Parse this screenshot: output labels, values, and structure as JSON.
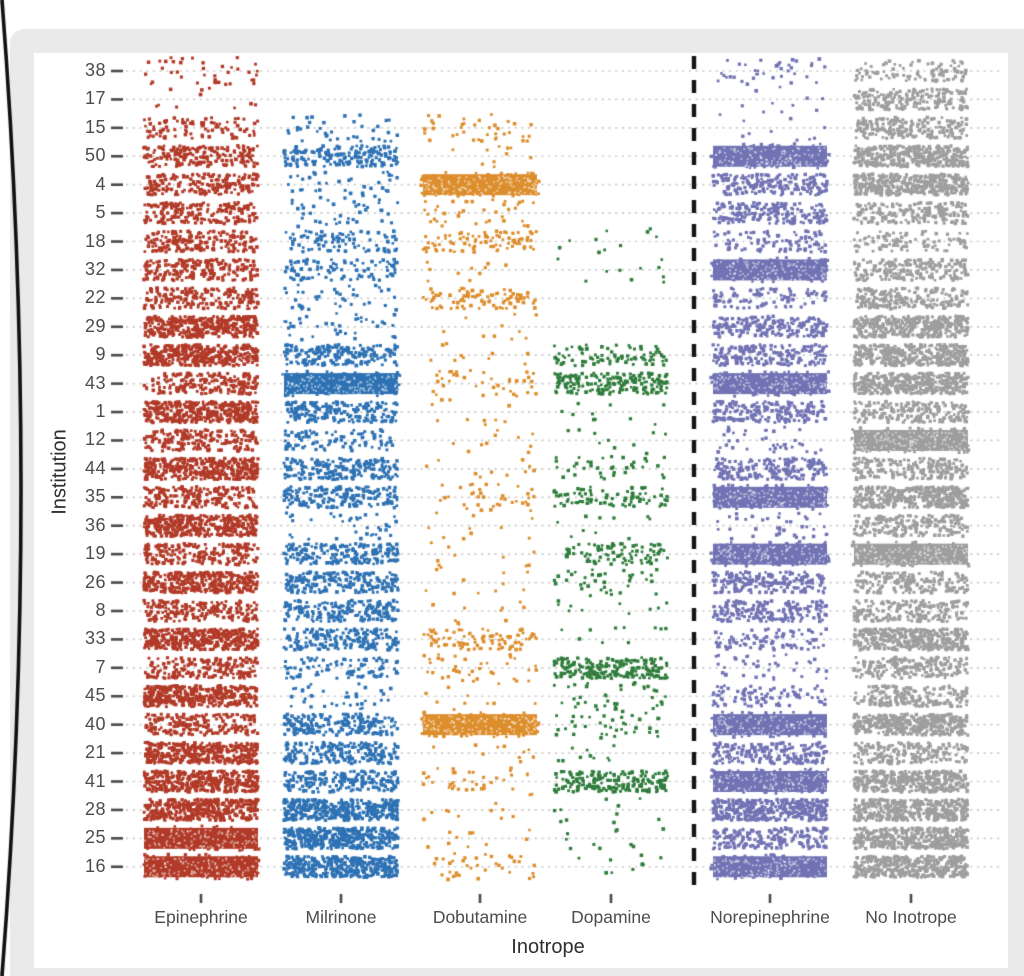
{
  "frame": {
    "left_edge_color": "#111111",
    "panel_background": "#eaeaea",
    "figure_background": "#ffffff",
    "grid_dot_color": "#cdcdcd",
    "tick_color": "#4a4a4a",
    "axis_text_color": "#4d4d4d"
  },
  "chart_data": {
    "type": "scatter",
    "variant": "jittered-strip-plot",
    "title": "",
    "xlabel": "Inotrope",
    "ylabel": "Institution",
    "legend": "none",
    "grid": "dotted horizontal line per institution row",
    "x_categories": [
      "Epinephrine",
      "Milrinone",
      "Dobutamine",
      "Dopamine",
      "Norepinephrine",
      "No Inotrope"
    ],
    "series_colors": {
      "Epinephrine": "#B23A28",
      "Milrinone": "#2E72B4",
      "Dobutamine": "#DD8E2D",
      "Dopamine": "#2F7D3C",
      "Norepinephrine": "#7173B4",
      "No Inotrope": "#9E9E9E"
    },
    "separator": {
      "position": "between Dopamine and Norepinephrine",
      "style": "dashed vertical line",
      "color": "#141414"
    },
    "y_categories": [
      "38",
      "17",
      "15",
      "50",
      "4",
      "5",
      "18",
      "32",
      "22",
      "29",
      "9",
      "43",
      "1",
      "12",
      "44",
      "35",
      "36",
      "19",
      "26",
      "8",
      "33",
      "7",
      "45",
      "40",
      "21",
      "41",
      "28",
      "25",
      "16"
    ],
    "density_scale": "0=none, 1≈10 pts, 2≈38 pts, 3≈90 pts, 4≈190 pts, 5≈380 pts (near solid), 6=solid band",
    "densities": [
      [
        2,
        0,
        0,
        0,
        2,
        3
      ],
      [
        1,
        0,
        0,
        0,
        1,
        4
      ],
      [
        3,
        2,
        2,
        0,
        1,
        4
      ],
      [
        4,
        4,
        1,
        0,
        6,
        5
      ],
      [
        4,
        2,
        6,
        0,
        4,
        5
      ],
      [
        4,
        2,
        2,
        0,
        4,
        4
      ],
      [
        4,
        3,
        3,
        1,
        3,
        3
      ],
      [
        4,
        3,
        1,
        1,
        6,
        4
      ],
      [
        4,
        2,
        3,
        0,
        3,
        4
      ],
      [
        5,
        2,
        1,
        0,
        4,
        5
      ],
      [
        5,
        4,
        1,
        3,
        4,
        5
      ],
      [
        4,
        6,
        2,
        4,
        6,
        5
      ],
      [
        5,
        4,
        1,
        1,
        4,
        4
      ],
      [
        4,
        3,
        1,
        1,
        2,
        6
      ],
      [
        5,
        4,
        1,
        2,
        4,
        4
      ],
      [
        4,
        4,
        2,
        3,
        6,
        5
      ],
      [
        5,
        2,
        1,
        1,
        2,
        4
      ],
      [
        4,
        4,
        1,
        3,
        6,
        6
      ],
      [
        5,
        4,
        1,
        2,
        4,
        4
      ],
      [
        4,
        4,
        1,
        1,
        4,
        4
      ],
      [
        5,
        4,
        3,
        1,
        3,
        5
      ],
      [
        4,
        3,
        2,
        4,
        2,
        4
      ],
      [
        5,
        2,
        1,
        2,
        3,
        4
      ],
      [
        4,
        4,
        6,
        2,
        6,
        5
      ],
      [
        5,
        4,
        1,
        1,
        4,
        4
      ],
      [
        5,
        4,
        2,
        4,
        6,
        5
      ],
      [
        5,
        5,
        1,
        1,
        5,
        5
      ],
      [
        6,
        5,
        1,
        1,
        4,
        5
      ],
      [
        6,
        5,
        2,
        1,
        6,
        5
      ]
    ]
  }
}
